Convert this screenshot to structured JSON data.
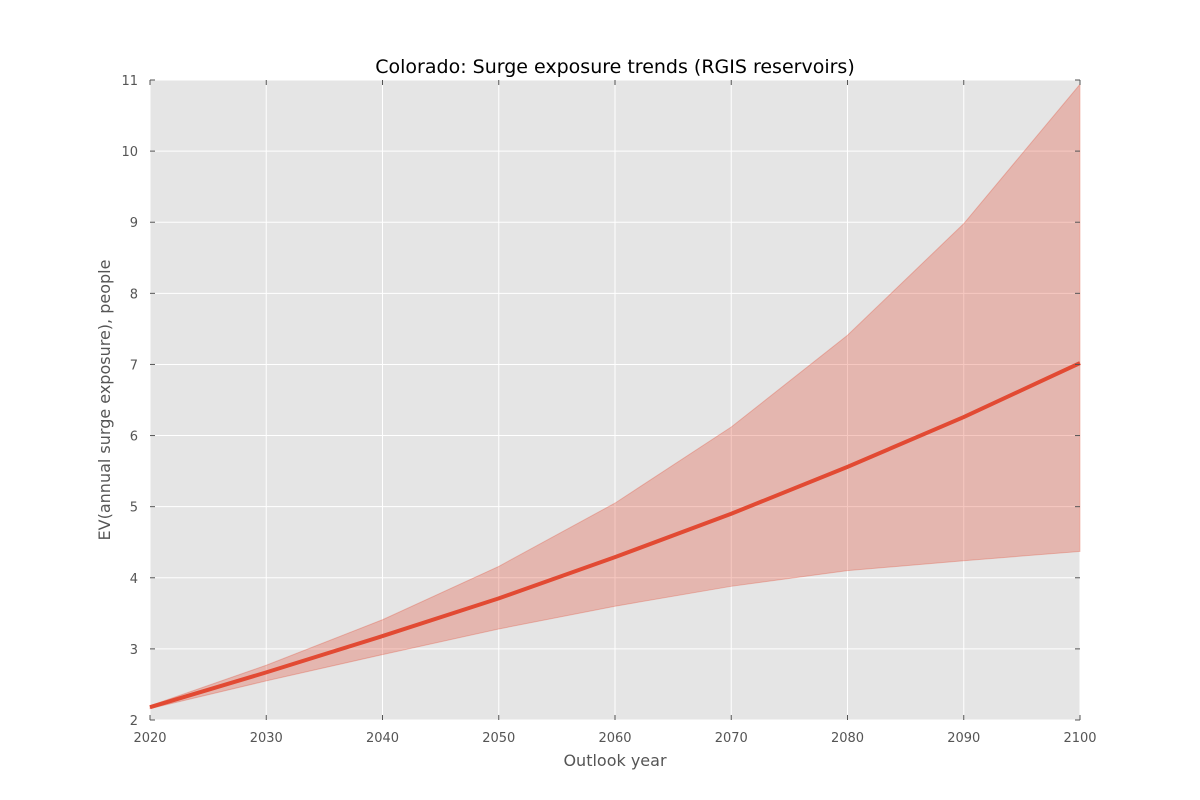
{
  "chart_data": {
    "type": "line",
    "title": "Colorado: Surge exposure trends (RGIS reservoirs)",
    "xlabel": "Outlook year",
    "ylabel": "EV(annual surge exposure), people",
    "xlim": [
      2020,
      2100
    ],
    "ylim": [
      2,
      11
    ],
    "xticks": [
      2020,
      2030,
      2040,
      2050,
      2060,
      2070,
      2080,
      2090,
      2100
    ],
    "yticks": [
      2,
      3,
      4,
      5,
      6,
      7,
      8,
      9,
      10,
      11
    ],
    "grid": true,
    "x": [
      2020,
      2030,
      2040,
      2050,
      2060,
      2070,
      2080,
      2090,
      2100
    ],
    "series": [
      {
        "type": "line",
        "values": [
          2.18,
          2.67,
          3.18,
          3.71,
          4.29,
          4.9,
          5.56,
          6.26,
          7.02
        ],
        "color": "#e24a33"
      },
      {
        "type": "band",
        "lower": [
          2.16,
          2.55,
          2.92,
          3.28,
          3.6,
          3.88,
          4.1,
          4.24,
          4.37
        ],
        "upper": [
          2.2,
          2.77,
          3.41,
          4.16,
          5.05,
          6.12,
          7.41,
          8.98,
          10.94
        ],
        "color": "#e24a33",
        "opacity": 0.3
      }
    ],
    "colors": {
      "plot_background": "#e5e5e5",
      "grid": "#ffffff",
      "line": "#e24a33",
      "band": "#e24a33",
      "text": "#555555",
      "title": "#000000"
    }
  }
}
